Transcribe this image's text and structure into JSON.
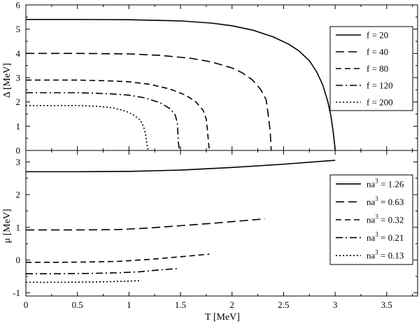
{
  "chart_data": [
    {
      "type": "line",
      "ylabel": "Δ  [MeV]",
      "xlim": [
        0,
        3.8
      ],
      "ylim": [
        0,
        6
      ],
      "x_ticks": [
        "0",
        "0.5",
        "1",
        "1.5",
        "2",
        "2.5",
        "3",
        "3.5"
      ],
      "y_ticks": [
        "0",
        "1",
        "2",
        "3",
        "4",
        "5",
        "6"
      ],
      "legend_position": "top-right",
      "series": [
        {
          "name": "f = 20",
          "style": "solid",
          "points": [
            [
              0,
              5.4
            ],
            [
              0.5,
              5.4
            ],
            [
              1.0,
              5.39
            ],
            [
              1.5,
              5.34
            ],
            [
              1.8,
              5.25
            ],
            [
              2.0,
              5.14
            ],
            [
              2.2,
              4.96
            ],
            [
              2.4,
              4.68
            ],
            [
              2.55,
              4.38
            ],
            [
              2.65,
              4.1
            ],
            [
              2.75,
              3.7
            ],
            [
              2.82,
              3.25
            ],
            [
              2.88,
              2.7
            ],
            [
              2.93,
              2.0
            ],
            [
              2.96,
              1.4
            ],
            [
              2.98,
              0.8
            ],
            [
              2.995,
              0.25
            ],
            [
              3.0,
              0.0
            ]
          ]
        },
        {
          "name": "f = 40",
          "style": "longdash",
          "points": [
            [
              0,
              4.0
            ],
            [
              0.5,
              4.0
            ],
            [
              1.0,
              3.98
            ],
            [
              1.3,
              3.92
            ],
            [
              1.6,
              3.8
            ],
            [
              1.8,
              3.65
            ],
            [
              2.0,
              3.4
            ],
            [
              2.1,
              3.2
            ],
            [
              2.2,
              2.9
            ],
            [
              2.28,
              2.5
            ],
            [
              2.33,
              2.1
            ],
            [
              2.35,
              1.5
            ],
            [
              2.37,
              0.8
            ],
            [
              2.38,
              0.0
            ]
          ]
        },
        {
          "name": "f = 80",
          "style": "dash",
          "points": [
            [
              0,
              2.9
            ],
            [
              0.5,
              2.9
            ],
            [
              0.8,
              2.87
            ],
            [
              1.0,
              2.83
            ],
            [
              1.2,
              2.73
            ],
            [
              1.4,
              2.53
            ],
            [
              1.55,
              2.28
            ],
            [
              1.65,
              2.0
            ],
            [
              1.72,
              1.65
            ],
            [
              1.75,
              1.3
            ],
            [
              1.76,
              0.9
            ],
            [
              1.77,
              0.4
            ],
            [
              1.78,
              0.0
            ]
          ]
        },
        {
          "name": "f = 120",
          "style": "dashdot",
          "points": [
            [
              0,
              2.38
            ],
            [
              0.5,
              2.38
            ],
            [
              0.8,
              2.34
            ],
            [
              1.0,
              2.28
            ],
            [
              1.15,
              2.17
            ],
            [
              1.3,
              1.97
            ],
            [
              1.4,
              1.72
            ],
            [
              1.45,
              1.45
            ],
            [
              1.47,
              1.1
            ],
            [
              1.475,
              0.7
            ],
            [
              1.48,
              0.3
            ],
            [
              1.49,
              0.0
            ]
          ]
        },
        {
          "name": "f = 200",
          "style": "dot",
          "points": [
            [
              0,
              1.85
            ],
            [
              0.5,
              1.85
            ],
            [
              0.7,
              1.82
            ],
            [
              0.85,
              1.75
            ],
            [
              0.97,
              1.62
            ],
            [
              1.05,
              1.45
            ],
            [
              1.11,
              1.25
            ],
            [
              1.14,
              1.0
            ],
            [
              1.16,
              0.7
            ],
            [
              1.17,
              0.4
            ],
            [
              1.18,
              0.1
            ],
            [
              1.19,
              0.0
            ]
          ]
        }
      ]
    },
    {
      "type": "line",
      "xlabel": "T [MeV]",
      "ylabel": "μ  [MeV]",
      "xlim": [
        0,
        3.8
      ],
      "ylim": [
        -1.1,
        3.35
      ],
      "x_ticks": [
        "0",
        "0.5",
        "1",
        "1.5",
        "2",
        "2.5",
        "3",
        "3.5"
      ],
      "y_ticks": [
        "-1",
        "0",
        "1",
        "2",
        "3"
      ],
      "legend_position": "right",
      "series": [
        {
          "name": "na³ = 1.26",
          "legend_label": "na",
          "legend_sup": "3",
          "legend_value": " = 1.26",
          "style": "solid",
          "points": [
            [
              0,
              2.7
            ],
            [
              0.5,
              2.7
            ],
            [
              1.0,
              2.71
            ],
            [
              1.5,
              2.75
            ],
            [
              2.0,
              2.83
            ],
            [
              2.5,
              2.93
            ],
            [
              3.0,
              3.05
            ]
          ]
        },
        {
          "name": "na³ = 0.63",
          "legend_label": "na",
          "legend_sup": "3",
          "legend_value": " = 0.63",
          "style": "longdash",
          "points": [
            [
              0,
              0.92
            ],
            [
              0.5,
              0.92
            ],
            [
              0.9,
              0.93
            ],
            [
              1.2,
              0.98
            ],
            [
              1.5,
              1.05
            ],
            [
              1.8,
              1.12
            ],
            [
              2.1,
              1.2
            ],
            [
              2.32,
              1.26
            ]
          ]
        },
        {
          "name": "na³ = 0.32",
          "legend_label": "na",
          "legend_sup": "3",
          "legend_value": " = 0.32",
          "style": "dash",
          "points": [
            [
              0,
              -0.07
            ],
            [
              0.3,
              -0.07
            ],
            [
              0.6,
              -0.06
            ],
            [
              0.9,
              -0.04
            ],
            [
              1.2,
              0.02
            ],
            [
              1.5,
              0.1
            ],
            [
              1.78,
              0.18
            ]
          ]
        },
        {
          "name": "na³ = 0.21",
          "legend_label": "na",
          "legend_sup": "3",
          "legend_value": " = 0.21",
          "style": "dashdot",
          "points": [
            [
              0,
              -0.42
            ],
            [
              0.3,
              -0.42
            ],
            [
              0.6,
              -0.41
            ],
            [
              0.9,
              -0.39
            ],
            [
              1.1,
              -0.36
            ],
            [
              1.3,
              -0.3
            ],
            [
              1.48,
              -0.26
            ]
          ]
        },
        {
          "name": "na³ = 0.13",
          "legend_label": "na",
          "legend_sup": "3",
          "legend_value": " = 0.13",
          "style": "dot",
          "points": [
            [
              0,
              -0.68
            ],
            [
              0.4,
              -0.68
            ],
            [
              0.7,
              -0.67
            ],
            [
              0.95,
              -0.65
            ],
            [
              1.12,
              -0.63
            ]
          ]
        }
      ]
    }
  ]
}
